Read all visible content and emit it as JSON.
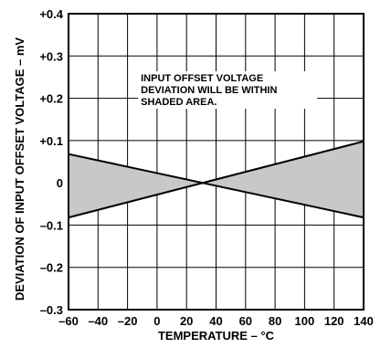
{
  "chart_data": {
    "type": "area",
    "title": "",
    "xlabel": "TEMPERATURE – °C",
    "ylabel": "DEVIATION OF INPUT OFFSET VOLTAGE – mV",
    "xlim": [
      -60,
      140
    ],
    "ylim": [
      -0.3,
      0.4
    ],
    "grid": true,
    "x_ticks": [
      -60,
      -40,
      -20,
      0,
      20,
      40,
      60,
      80,
      100,
      120,
      140
    ],
    "x_tick_labels": [
      "–60",
      "–40",
      "–20",
      "0",
      "20",
      "40",
      "60",
      "80",
      "100",
      "120",
      "140"
    ],
    "y_ticks": [
      0.4,
      0.3,
      0.2,
      0.1,
      0,
      -0.1,
      -0.2,
      -0.3
    ],
    "y_tick_labels": [
      "+0.4",
      "+0.3",
      "+0.2",
      "+0.1",
      "0",
      "–0.1",
      "–0.2",
      "–0.3"
    ],
    "boundary_lines": [
      {
        "x": [
          -60,
          140
        ],
        "y": [
          -0.082,
          0.098
        ]
      },
      {
        "x": [
          -60,
          140
        ],
        "y": [
          0.068,
          -0.082
        ]
      }
    ],
    "crossing_point": {
      "x": 30,
      "y": 0
    },
    "shaded_color": "#c8c8c8",
    "annotation": {
      "lines": [
        "INPUT OFFSET VOLTAGE",
        "DEVIATION WILL BE WITHIN",
        "SHADED AREA."
      ],
      "anchor": {
        "x": -11,
        "y": 0.24
      }
    }
  }
}
